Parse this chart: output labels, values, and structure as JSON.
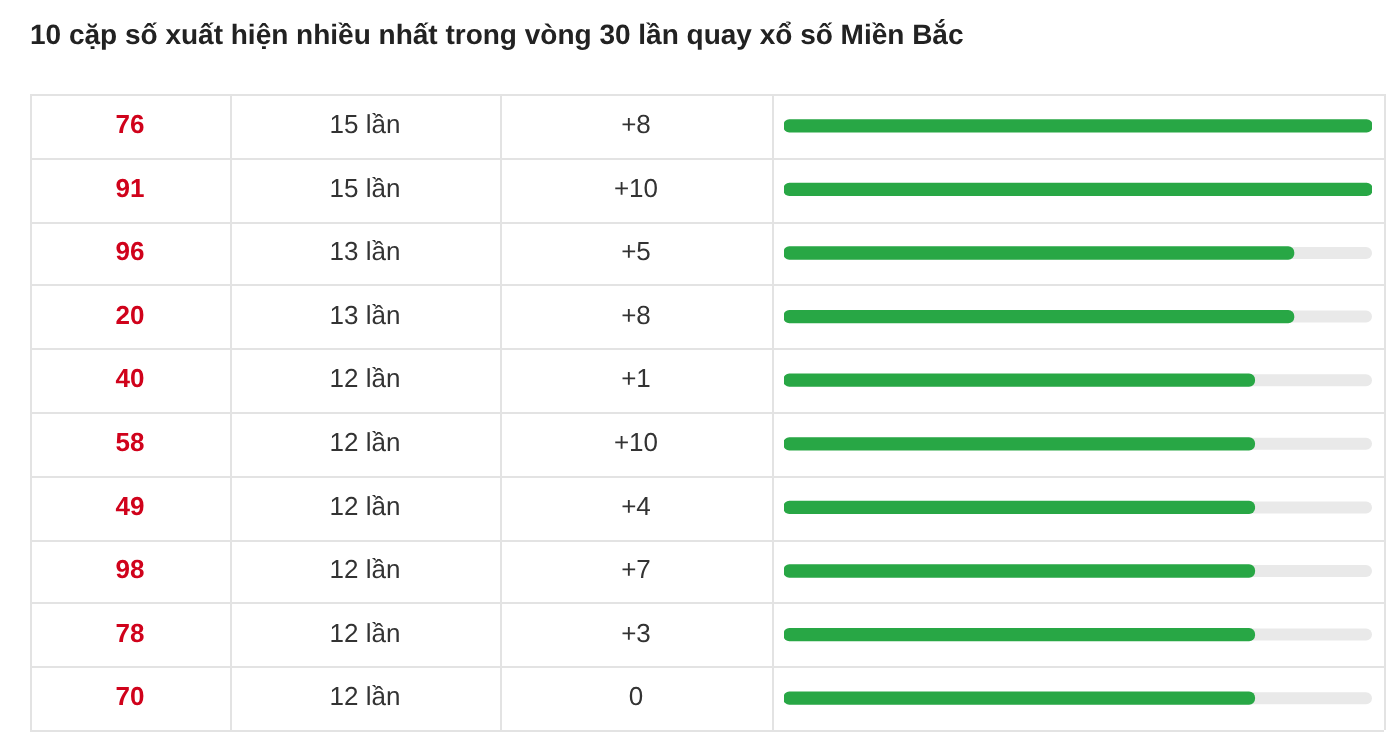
{
  "chart_data": {
    "type": "bar",
    "orientation": "horizontal",
    "title": "10 cặp số xuất hiện nhiều nhất trong vòng 30 lần quay xổ số Miền Bắc",
    "categories": [
      "76",
      "91",
      "96",
      "20",
      "40",
      "58",
      "49",
      "98",
      "78",
      "70"
    ],
    "values": [
      15,
      15,
      13,
      13,
      12,
      12,
      12,
      12,
      12,
      12
    ],
    "value_labels": [
      "15 lần",
      "15 lần",
      "13 lần",
      "13 lần",
      "12 lần",
      "12 lần",
      "12 lần",
      "12 lần",
      "12 lần",
      "12 lần"
    ],
    "color": "#28a745",
    "annotations": [
      "+8",
      "+10",
      "+5",
      "+8",
      "+1",
      "+10",
      "+4",
      "+7",
      "+3",
      "0"
    ],
    "grid": true,
    "legend": false
  }
}
